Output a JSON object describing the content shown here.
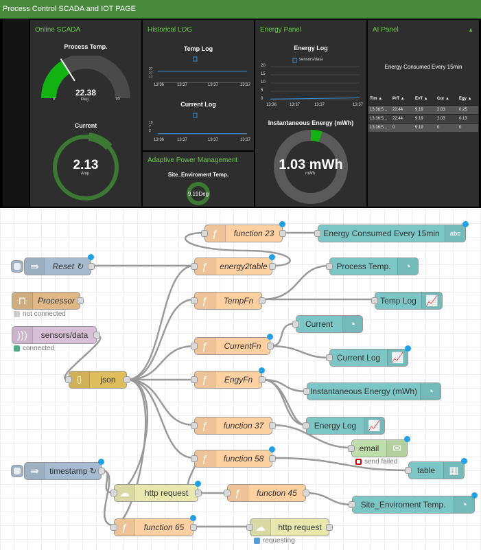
{
  "dashboard": {
    "title": "Process Control SCADA and IOT PAGE",
    "cards": {
      "online": "Online SCADA",
      "historical": "Historical LOG",
      "energy": "Energy Panel",
      "ai": "AI Panel",
      "adaptive": "Adaptive Power Management"
    },
    "process_temp": {
      "label": "Process Temp.",
      "value": "22.38",
      "unit": "Deg",
      "min": "0",
      "max": "70",
      "fraction": 0.32
    },
    "current": {
      "label": "Current",
      "value": "2.13",
      "unit": "Amp",
      "fraction": 0.12
    },
    "temp_log": {
      "title": "Temp Log",
      "y_ticks": [
        "17",
        "17",
        "27"
      ],
      "x_ticks": [
        "13:36",
        "13:37",
        "13:37",
        "13:37"
      ],
      "chart_data": {
        "type": "line",
        "x": [
          "13:36",
          "13:37",
          "13:37",
          "13:37"
        ],
        "series": [
          {
            "values": [
              22.4,
              22.4,
              22.4,
              22.4
            ]
          }
        ]
      }
    },
    "current_log": {
      "title": "Current Log",
      "y_ticks": [
        "2",
        "7",
        "10"
      ],
      "x_ticks": [
        "13:36",
        "13:37",
        "13:37",
        "13:37"
      ],
      "chart_data": {
        "type": "line",
        "x": [
          "13:36",
          "13:37",
          "13:37",
          "13:37"
        ],
        "series": [
          {
            "values": [
              2.1,
              2.1,
              2.1,
              2.1
            ]
          }
        ]
      }
    },
    "energy_log": {
      "title": "Energy Log",
      "legend": "sensors/data",
      "y_ticks": [
        "20",
        "15",
        "10",
        "5",
        "0"
      ],
      "x_ticks": [
        "13:36",
        "13:37",
        "13:37",
        "13:37"
      ],
      "chart_data": {
        "type": "line",
        "x": [
          "13:36",
          "13:37",
          "13:37",
          "13:37"
        ],
        "series": [
          {
            "name": "sensors/data",
            "values": [
              0.3,
              0.5,
              0.8,
              1.03
            ]
          }
        ],
        "ylim": [
          0,
          20
        ]
      }
    },
    "instantaneous": {
      "label": "Instantaneous Energy (mWh)",
      "value": "1.03 mWh",
      "unit": "mWh",
      "fraction": 0.05
    },
    "site_temp": {
      "label": "Site_Enviroment Temp.",
      "value": "9.19Deg",
      "fraction": 0.15
    },
    "ai_panel": {
      "heading": "Energy Consumed Every 15min",
      "columns": [
        "Tim",
        "PrT",
        "EvT",
        "Cur",
        "Egy"
      ],
      "rows": [
        [
          "13:36:5...",
          "22.44",
          "9.19",
          "2.03",
          "0.25"
        ],
        [
          "13:36:5...",
          "22.44",
          "9.19",
          "2.03",
          "0.13"
        ],
        [
          "13:36:5...",
          "0",
          "9.19",
          "0",
          "0"
        ]
      ]
    }
  },
  "flow": {
    "nodes": {
      "function23": "function 23",
      "energy_ui": "Energy Consumed Every 15min",
      "reset": "Reset ↻",
      "energy2table": "energy2table",
      "process_temp_ui": "Process Temp.",
      "processor": "Processor",
      "processor_status": "not connected",
      "tempfn": "TempFn",
      "temp_log_ui": "Temp Log",
      "mqtt": "sensors/data",
      "mqtt_status": "connected",
      "current_ui": "Current",
      "currentfn": "CurrentFn",
      "current_log_ui": "Current Log",
      "json": "json",
      "engyfn": "EngyFn",
      "inst_energy_ui": "Instantaneous Energy (mWh)",
      "function37": "function 37",
      "energy_log_ui": "Energy Log",
      "email": "email",
      "email_status": "send failed",
      "function58": "function 58",
      "table_ui": "table",
      "timestamp": "timestamp ↻",
      "http1": "http request",
      "function45": "function 45",
      "site_temp_ui": "Site_Enviroment Temp.",
      "function65": "function 65",
      "http2": "http request",
      "http2_status": "requesting"
    },
    "icons": {
      "function": "function-icon",
      "inject": "inject-arrow-icon",
      "gauge": "gauge-icon",
      "chart": "chart-icon",
      "text": "abc-text-icon",
      "table": "table-icon",
      "email": "envelope-icon",
      "http": "globe-icon",
      "json": "json-braces-icon",
      "mqtt": "wireless-icon"
    },
    "colors": {
      "function": "#fdd0a2",
      "ui": "#7cc6c6",
      "inject": "#a6bbcf",
      "json": "#debd5c",
      "mqtt": "#d8bfd8",
      "http": "#e7e7ae",
      "email": "#c0deab",
      "status_grey": "#cccccc",
      "status_green": "#5a8",
      "status_red": "#c00",
      "status_blue": "#5b9bd5",
      "changed_dot": "#22a0e6"
    }
  }
}
